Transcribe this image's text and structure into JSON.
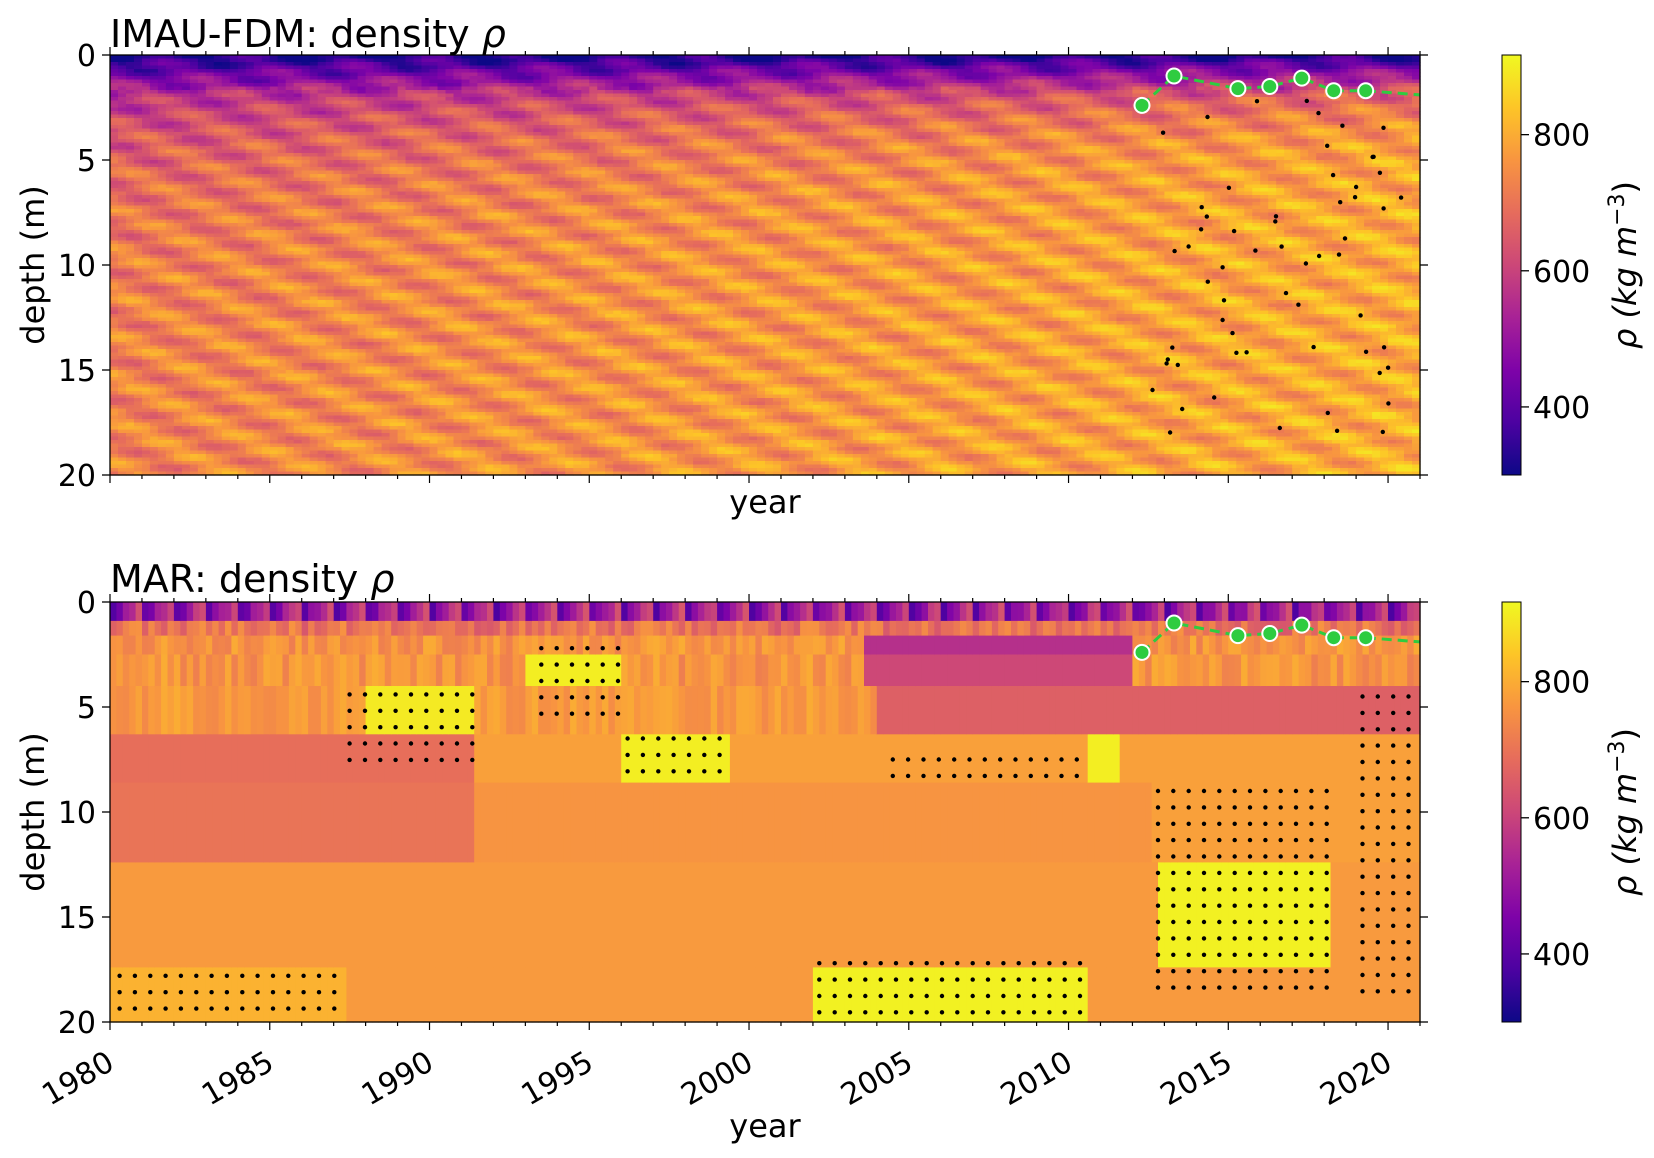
{
  "chart_data": [
    {
      "type": "heatmap",
      "title": "IMAU-FDM: density ρ",
      "xlabel": "year",
      "ylabel": "depth (m)",
      "xlim": [
        1980,
        2021
      ],
      "ylim": [
        20,
        0
      ],
      "y_ticks": [
        0,
        5,
        10,
        15,
        20
      ],
      "x_tick_labels_shown": false,
      "colorbar": {
        "label": "ρ (kg m−3)",
        "colormap": "plasma",
        "range": [
          300,
          917
        ],
        "ticks": [
          400,
          600,
          800
        ]
      },
      "observation_series": {
        "style": "green dashed line with markers",
        "color": "#2ecc40",
        "x": [
          2012.3,
          2013.3,
          2015.3,
          2016.3,
          2017.3,
          2018.3,
          2019.3,
          2021.0
        ],
        "y": [
          2.4,
          1.0,
          1.6,
          1.5,
          1.1,
          1.7,
          1.7,
          1.9
        ]
      }
    },
    {
      "type": "heatmap",
      "title": "MAR: density ρ",
      "xlabel": "year",
      "ylabel": "depth (m)",
      "xlim": [
        1980,
        2021
      ],
      "ylim": [
        20,
        0
      ],
      "y_ticks": [
        0,
        5,
        10,
        15,
        20
      ],
      "x_ticks": [
        1980,
        1985,
        1990,
        1995,
        2000,
        2005,
        2010,
        2015,
        2020
      ],
      "colorbar": {
        "label": "ρ (kg m−3)",
        "colormap": "plasma",
        "range": [
          300,
          917
        ],
        "ticks": [
          400,
          600,
          800
        ]
      },
      "observation_series": {
        "style": "green dashed line with markers",
        "color": "#2ecc40",
        "x": [
          2012.3,
          2013.3,
          2015.3,
          2016.3,
          2017.3,
          2018.3,
          2019.3,
          2021.0
        ],
        "y": [
          2.4,
          1.0,
          1.6,
          1.5,
          1.1,
          1.7,
          1.7,
          1.9
        ]
      }
    }
  ],
  "panels": {
    "top": {
      "title_main": "IMAU-FDM: density ",
      "title_symbol": "ρ",
      "ylabel": "depth (m)",
      "xlabel": "year",
      "cbar_label_main": "ρ (kg m",
      "cbar_label_sup": "−3",
      "cbar_label_end": ")"
    },
    "bottom": {
      "title_main": "MAR: density ",
      "title_symbol": "ρ",
      "ylabel": "depth (m)",
      "xlabel": "year",
      "cbar_label_main": "ρ (kg m",
      "cbar_label_sup": "−3",
      "cbar_label_end": ")"
    }
  }
}
